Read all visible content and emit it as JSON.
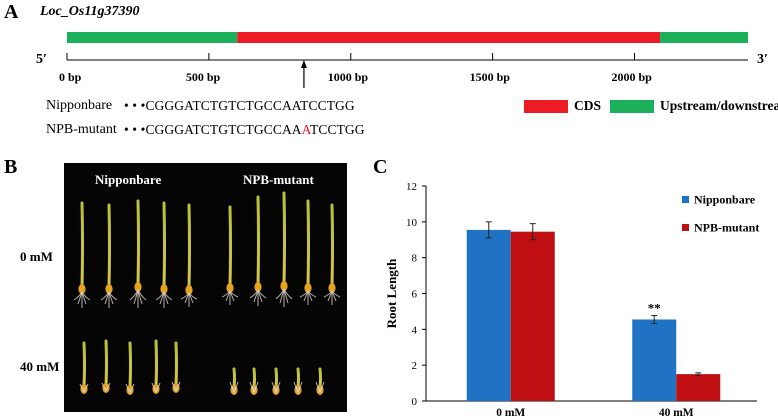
{
  "panel_a": {
    "letter": "A",
    "gene_name": "Loc_Os11g37390",
    "five_prime": "5′",
    "three_prime": "3′",
    "axis_max_bp": 2400,
    "segments": [
      {
        "type": "upstream",
        "start_bp": 0,
        "end_bp": 600,
        "color": "#1cb05a"
      },
      {
        "type": "cds",
        "start_bp": 600,
        "end_bp": 2090,
        "color": "#ed1c24"
      },
      {
        "type": "downstream",
        "start_bp": 2090,
        "end_bp": 2400,
        "color": "#1cb05a"
      }
    ],
    "ticks": [
      {
        "bp": 0,
        "label": "0 bp"
      },
      {
        "bp": 500,
        "label": "500 bp"
      },
      {
        "bp": 1000,
        "label": "1000 bp"
      },
      {
        "bp": 1500,
        "label": "1500 bp"
      },
      {
        "bp": 2000,
        "label": "2000 bp"
      }
    ],
    "mutation_arrow_bp": 835,
    "sequences": [
      {
        "name": "Nipponbare",
        "dots": "• • •",
        "seq_before": "CGGGATCTGTCTGCCAATCCTGG",
        "mutant_base": "",
        "seq_after": ""
      },
      {
        "name": "NPB-mutant",
        "dots": "• • •",
        "seq_before": "CGGGATCTGTCTGCCAA",
        "mutant_base": "A",
        "seq_after": "TCCTGG"
      }
    ],
    "legend": [
      {
        "label": "CDS",
        "color": "#ed1c24"
      },
      {
        "label": "Upstream/downstream",
        "color": "#1cb05a"
      }
    ]
  },
  "panel_b": {
    "letter": "B",
    "col_labels": [
      "Nipponbare",
      "NPB-mutant"
    ],
    "row_labels": [
      "0 mM",
      "40 mM"
    ]
  },
  "panel_c": {
    "letter": "C",
    "chart_data": {
      "type": "bar",
      "categories": [
        "0 mM",
        "40 mM"
      ],
      "ylabel": "Root Length",
      "xlabel": "",
      "ylim": [
        0,
        12
      ],
      "yticks": [
        0,
        2,
        4,
        6,
        8,
        10,
        12
      ],
      "grid": false,
      "legend_position": "top-right",
      "series": [
        {
          "name": "Nipponbare",
          "color": "#1f72c4",
          "values": [
            9.55,
            4.55
          ],
          "errors": [
            0.45,
            0.22
          ]
        },
        {
          "name": "NPB-mutant",
          "color": "#c00f12",
          "values": [
            9.45,
            1.5
          ],
          "errors": [
            0.45,
            0.07
          ]
        }
      ],
      "annotations": [
        {
          "category": "40 mM",
          "series": "Nipponbare",
          "text": "**"
        }
      ]
    }
  }
}
